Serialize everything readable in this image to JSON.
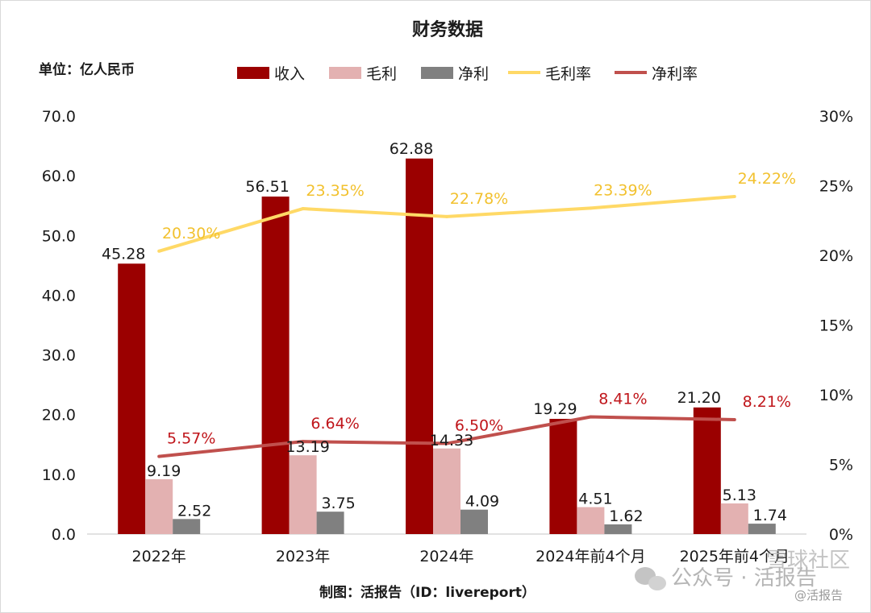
{
  "chart_data": {
    "type": "bar",
    "title": "财务数据",
    "unit_label": "单位：亿人民币",
    "categories": [
      "2022年",
      "2023年",
      "2024年",
      "2024年前4个月",
      "2025年前4个月"
    ],
    "series": [
      {
        "name": "收入",
        "kind": "bar",
        "axis": "left",
        "color": "#9b0000",
        "values": [
          45.28,
          56.51,
          62.88,
          19.29,
          21.2
        ],
        "labels": [
          "45.28",
          "56.51",
          "62.88",
          "19.29",
          "21.20"
        ]
      },
      {
        "name": "毛利",
        "kind": "bar",
        "axis": "left",
        "color": "#e3b1b1",
        "values": [
          9.19,
          13.19,
          14.33,
          4.51,
          5.13
        ],
        "labels": [
          "9.19",
          "13.19",
          "14.33",
          "4.51",
          "5.13"
        ]
      },
      {
        "name": "净利",
        "kind": "bar",
        "axis": "left",
        "color": "#808080",
        "values": [
          2.52,
          3.75,
          4.09,
          1.62,
          1.74
        ],
        "labels": [
          "2.52",
          "3.75",
          "4.09",
          "1.62",
          "1.74"
        ]
      },
      {
        "name": "毛利率",
        "kind": "line",
        "axis": "right",
        "color": "#ffd966",
        "values": [
          20.3,
          23.35,
          22.78,
          23.39,
          24.22
        ],
        "labels": [
          "20.30%",
          "23.35%",
          "22.78%",
          "23.39%",
          "24.22%"
        ]
      },
      {
        "name": "净利率",
        "kind": "line",
        "axis": "right",
        "color": "#c0504d",
        "values": [
          5.57,
          6.64,
          6.5,
          8.41,
          8.21
        ],
        "labels": [
          "5.57%",
          "6.64%",
          "6.50%",
          "8.41%",
          "8.21%"
        ]
      }
    ],
    "y_left": {
      "min": 0,
      "max": 70,
      "ticks": [
        "0.0",
        "10.0",
        "20.0",
        "30.0",
        "40.0",
        "50.0",
        "60.0",
        "70.0"
      ]
    },
    "y_right": {
      "min": 0,
      "max": 30,
      "ticks": [
        "0%",
        "5%",
        "10%",
        "15%",
        "20%",
        "25%",
        "30%"
      ]
    },
    "grid": false,
    "legend_position": "top-center"
  },
  "source": "制图：活报告（ID：livereport）",
  "watermark": {
    "main": "公众号 · 活报告",
    "community": "雪球社区",
    "handle": "@活报告"
  },
  "colors": {
    "gm_label": "#f2c12e",
    "nm_label": "#c0161b"
  }
}
